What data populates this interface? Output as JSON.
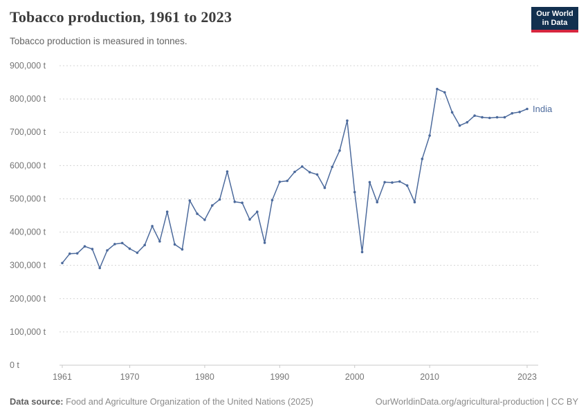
{
  "header": {
    "title": "Tobacco production, 1961 to 2023",
    "subtitle": "Tobacco production is measured in tonnes.",
    "logo": {
      "line1": "Our World",
      "line2": "in Data",
      "bg_color": "#12304f",
      "accent_color": "#d7263f"
    }
  },
  "chart_data": {
    "type": "line",
    "title": "Tobacco production, 1961 to 2023",
    "unit": "t",
    "grid": "dashed horizontal gridlines, on",
    "legend_position": "inline right end-of-line label",
    "xlim": [
      1961,
      2023
    ],
    "ylim": [
      0,
      900000
    ],
    "x_interval": 1,
    "x_ticks": [
      "1961",
      "1970",
      "1980",
      "1990",
      "2000",
      "2010",
      "2023"
    ],
    "y_ticks": [
      {
        "value": 0,
        "label": "0 t"
      },
      {
        "value": 100000,
        "label": "100,000 t"
      },
      {
        "value": 200000,
        "label": "200,000 t"
      },
      {
        "value": 300000,
        "label": "300,000 t"
      },
      {
        "value": 400000,
        "label": "400,000 t"
      },
      {
        "value": 500000,
        "label": "500,000 t"
      },
      {
        "value": 600000,
        "label": "600,000 t"
      },
      {
        "value": 700000,
        "label": "700,000 t"
      },
      {
        "value": 800000,
        "label": "800,000 t"
      },
      {
        "value": 900000,
        "label": "900,000 t"
      }
    ],
    "series": [
      {
        "name": "India",
        "color": "#4c6a9c",
        "x_start": 1961,
        "values": [
          307000,
          335000,
          336000,
          357000,
          349000,
          292000,
          345000,
          364000,
          367000,
          350000,
          338000,
          361000,
          418000,
          372000,
          461000,
          363000,
          348000,
          495000,
          455000,
          437000,
          480000,
          498000,
          582000,
          491000,
          488000,
          438000,
          461000,
          368000,
          496000,
          551000,
          554000,
          581000,
          597000,
          580000,
          573000,
          533000,
          596000,
          645000,
          735000,
          520000,
          340000,
          550000,
          490000,
          550000,
          549000,
          552000,
          540000,
          490000,
          620000,
          690000,
          830000,
          820000,
          760000,
          720000,
          730000,
          750000,
          745000,
          743000,
          745000,
          745000,
          757000,
          761000,
          770000
        ]
      }
    ]
  },
  "footer": {
    "source_label": "Data source:",
    "source_text": " Food and Agriculture Organization of the United Nations (2025)",
    "right_text": "OurWorldinData.org/agricultural-production | CC BY"
  }
}
